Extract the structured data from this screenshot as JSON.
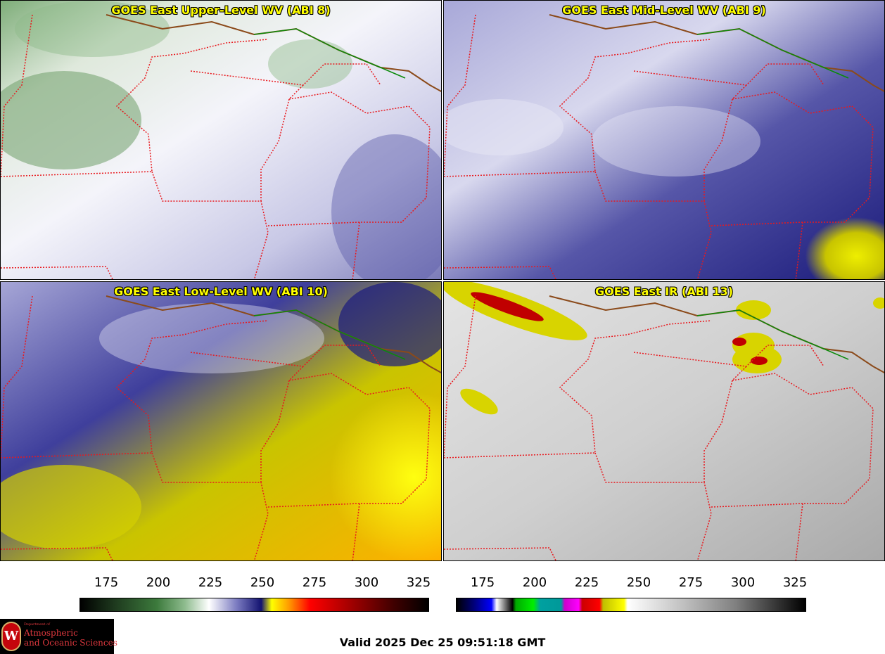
{
  "panels": [
    {
      "title": "GOES East Upper-Level WV (ABI 8)"
    },
    {
      "title": "GOES East Mid-Level WV (ABI 9)"
    },
    {
      "title": "GOES East Low-Level WV (ABI 10)"
    },
    {
      "title": "GOES East IR (ABI 13)"
    }
  ],
  "colorbars": {
    "wv": {
      "ticks": [
        "175",
        "200",
        "225",
        "250",
        "275",
        "300",
        "325"
      ]
    },
    "ir": {
      "ticks": [
        "175",
        "200",
        "225",
        "250",
        "275",
        "300",
        "325"
      ]
    }
  },
  "valid_text": "Valid 2025 Dec 25 09:51:18 GMT",
  "logo": {
    "dept": "Department of",
    "line1": "Atmospheric",
    "line2": "and Oceanic Sciences",
    "crest": "W"
  },
  "colors": {
    "state_border": "#e8191e",
    "international_border": "#0a8a0a",
    "coast": "#8b4a1a",
    "title_text": "#ffff00"
  }
}
